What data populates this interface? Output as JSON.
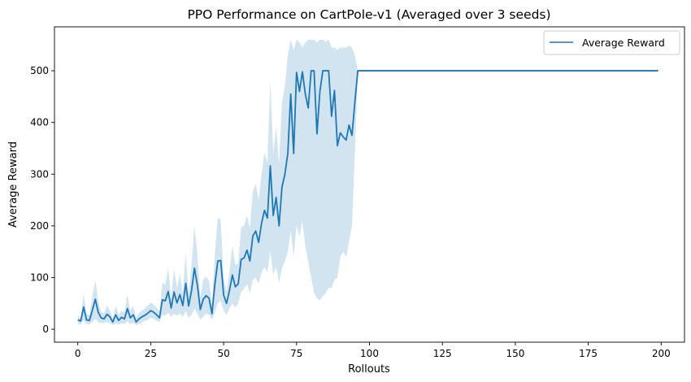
{
  "chart_data": {
    "type": "line",
    "title": "PPO Performance on CartPole-v1 (Averaged over 3 seeds)",
    "xlabel": "Rollouts",
    "ylabel": "Average Reward",
    "xlim": [
      -8,
      208
    ],
    "ylim": [
      -25,
      585
    ],
    "xticks": [
      0,
      25,
      50,
      75,
      100,
      125,
      150,
      175,
      200
    ],
    "yticks": [
      0,
      100,
      200,
      300,
      400,
      500
    ],
    "grid": false,
    "legend_position": "top-right",
    "colors": {
      "line": "#1f77b4",
      "band": "#1f77b4"
    },
    "series": [
      {
        "name": "Average Reward",
        "x": [
          0,
          1,
          2,
          3,
          4,
          5,
          6,
          7,
          8,
          9,
          10,
          11,
          12,
          13,
          14,
          15,
          16,
          17,
          18,
          19,
          20,
          21,
          22,
          23,
          24,
          25,
          26,
          27,
          28,
          29,
          30,
          31,
          32,
          33,
          34,
          35,
          36,
          37,
          38,
          39,
          40,
          41,
          42,
          43,
          44,
          45,
          46,
          47,
          48,
          49,
          50,
          51,
          52,
          53,
          54,
          55,
          56,
          57,
          58,
          59,
          60,
          61,
          62,
          63,
          64,
          65,
          66,
          67,
          68,
          69,
          70,
          71,
          72,
          73,
          74,
          75,
          76,
          77,
          78,
          79,
          80,
          81,
          82,
          83,
          84,
          85,
          86,
          87,
          88,
          89,
          90,
          91,
          92,
          93,
          94,
          95,
          96,
          97,
          98,
          99,
          100,
          101,
          102,
          103,
          104,
          105,
          106,
          107,
          108,
          109,
          110,
          111,
          112,
          113,
          114,
          115,
          116,
          117,
          118,
          119,
          120,
          121,
          122,
          123,
          124,
          125,
          126,
          127,
          128,
          129,
          130,
          131,
          132,
          133,
          134,
          135,
          136,
          137,
          138,
          139,
          140,
          141,
          142,
          143,
          144,
          145,
          146,
          147,
          148,
          149,
          150,
          151,
          152,
          153,
          154,
          155,
          156,
          157,
          158,
          159,
          160,
          161,
          162,
          163,
          164,
          165,
          166,
          167,
          168,
          169,
          170,
          171,
          172,
          173,
          174,
          175,
          176,
          177,
          178,
          179,
          180,
          181,
          182,
          183,
          184,
          185,
          186,
          187,
          188,
          189,
          190,
          191,
          192,
          193,
          194,
          195,
          196,
          197,
          198,
          199
        ],
        "values": [
          18,
          16,
          43,
          18,
          17,
          37,
          58,
          33,
          22,
          20,
          29,
          24,
          14,
          28,
          17,
          23,
          20,
          40,
          22,
          28,
          14,
          20,
          24,
          27,
          31,
          36,
          33,
          28,
          22,
          57,
          55,
          73,
          41,
          72,
          51,
          67,
          46,
          89,
          45,
          75,
          118,
          85,
          38,
          58,
          65,
          60,
          30,
          88,
          132,
          133,
          66,
          50,
          75,
          105,
          82,
          88,
          135,
          138,
          153,
          132,
          180,
          190,
          168,
          205,
          230,
          215,
          316,
          220,
          255,
          200,
          275,
          300,
          340,
          455,
          340,
          497,
          460,
          498,
          455,
          428,
          500,
          500,
          378,
          460,
          500,
          500,
          500,
          412,
          462,
          355,
          380,
          372,
          366,
          395,
          375,
          440,
          500,
          500,
          500,
          500,
          500,
          500,
          500,
          500,
          500,
          500,
          500,
          500,
          500,
          500,
          500,
          500,
          500,
          500,
          500,
          500,
          500,
          500,
          500,
          500,
          500,
          500,
          500,
          500,
          500,
          500,
          500,
          500,
          500,
          500,
          500,
          500,
          500,
          500,
          500,
          500,
          500,
          500,
          500,
          500,
          500,
          500,
          500,
          500,
          500,
          500,
          500,
          500,
          500,
          500,
          500,
          500,
          500,
          500,
          500,
          500,
          500,
          500,
          500,
          500,
          500,
          500,
          500,
          500,
          500,
          500,
          500,
          500,
          500,
          500,
          500,
          500,
          500,
          500,
          500,
          500,
          500,
          500,
          500,
          500,
          500,
          500,
          500,
          500,
          500,
          500,
          500,
          500,
          500,
          500,
          500,
          500,
          500,
          500,
          500,
          500,
          500,
          500,
          500,
          500
        ],
        "lower": [
          10,
          10,
          18,
          10,
          10,
          14,
          20,
          14,
          12,
          12,
          14,
          12,
          8,
          12,
          9,
          12,
          10,
          16,
          10,
          12,
          8,
          10,
          14,
          16,
          18,
          22,
          20,
          16,
          14,
          28,
          26,
          32,
          24,
          30,
          26,
          30,
          24,
          35,
          22,
          28,
          40,
          30,
          18,
          24,
          30,
          28,
          18,
          32,
          50,
          55,
          36,
          28,
          40,
          50,
          42,
          50,
          72,
          78,
          88,
          70,
          96,
          100,
          88,
          110,
          120,
          110,
          150,
          106,
          120,
          90,
          118,
          132,
          150,
          190,
          140,
          200,
          180,
          210,
          160,
          130,
          100,
          70,
          60,
          56,
          64,
          70,
          80,
          80,
          96,
          100,
          140,
          150,
          140,
          170,
          200,
          340,
          500,
          500,
          500,
          500,
          500,
          500,
          500,
          500,
          500,
          500,
          500,
          500,
          500,
          500,
          500,
          500,
          500,
          500,
          500,
          500,
          500,
          500,
          500,
          500,
          500,
          500,
          500,
          500,
          500,
          500,
          500,
          500,
          500,
          500,
          500,
          500,
          500,
          500,
          500,
          500,
          500,
          500,
          500,
          500,
          500,
          500,
          500,
          500,
          500,
          500,
          500,
          500,
          500,
          500,
          500,
          500,
          500,
          500,
          500,
          500,
          500,
          500,
          500,
          500,
          500,
          500,
          500,
          500,
          500,
          500,
          500,
          500,
          500,
          500,
          500,
          500,
          500,
          500,
          500,
          500,
          500,
          500,
          500,
          500,
          500,
          500,
          500,
          500,
          500,
          500,
          500,
          500,
          500,
          500,
          500,
          500,
          500,
          500,
          500,
          500,
          500,
          500,
          500,
          500
        ],
        "upper": [
          26,
          22,
          68,
          30,
          28,
          62,
          95,
          54,
          34,
          30,
          46,
          36,
          22,
          46,
          27,
          36,
          32,
          66,
          36,
          46,
          22,
          32,
          36,
          40,
          46,
          52,
          48,
          42,
          34,
          90,
          86,
          118,
          60,
          116,
          80,
          106,
          70,
          146,
          68,
          124,
          200,
          146,
          62,
          96,
          102,
          94,
          46,
          148,
          216,
          212,
          98,
          74,
          112,
          162,
          124,
          128,
          198,
          200,
          220,
          196,
          266,
          282,
          250,
          302,
          342,
          322,
          480,
          340,
          392,
          320,
          440,
          470,
          530,
          560,
          540,
          560,
          555,
          545,
          555,
          560,
          560,
          560,
          555,
          560,
          560,
          556,
          560,
          545,
          545,
          540,
          545,
          545,
          545,
          548,
          545,
          530,
          500,
          500,
          500,
          500,
          500,
          500,
          500,
          500,
          500,
          500,
          500,
          500,
          500,
          500,
          500,
          500,
          500,
          500,
          500,
          500,
          500,
          500,
          500,
          500,
          500,
          500,
          500,
          500,
          500,
          500,
          500,
          500,
          500,
          500,
          500,
          500,
          500,
          500,
          500,
          500,
          500,
          500,
          500,
          500,
          500,
          500,
          500,
          500,
          500,
          500,
          500,
          500,
          500,
          500,
          500,
          500,
          500,
          500,
          500,
          500,
          500,
          500,
          500,
          500,
          500,
          500,
          500,
          500,
          500,
          500,
          500,
          500,
          500,
          500,
          500,
          500,
          500,
          500,
          500,
          500,
          500,
          500,
          500,
          500,
          500,
          500,
          500,
          500,
          500,
          500,
          500,
          500,
          500,
          500,
          500,
          500,
          500,
          500,
          500,
          500,
          500,
          500,
          500,
          500
        ]
      }
    ]
  }
}
